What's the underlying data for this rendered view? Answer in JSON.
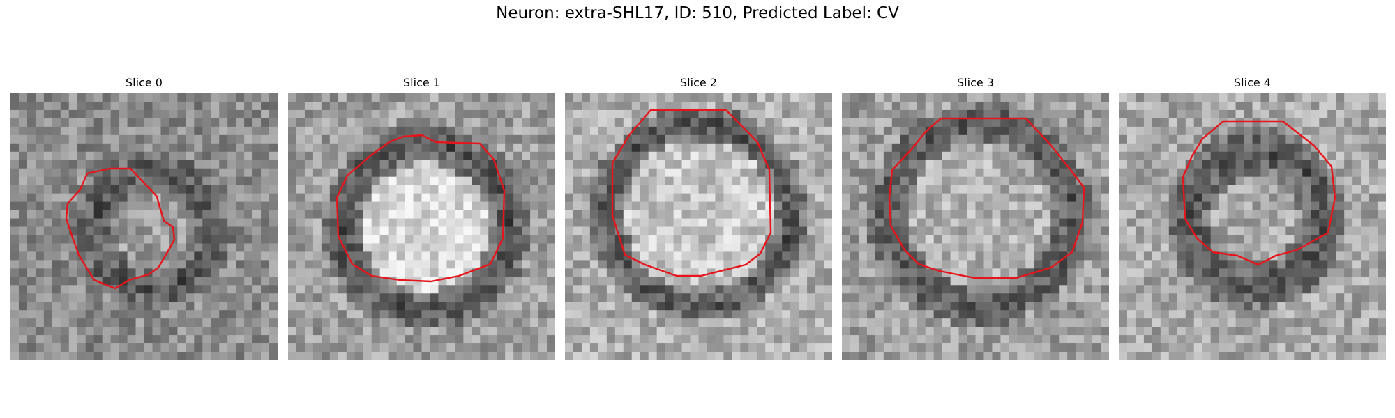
{
  "figure": {
    "title": "Neuron: extra-SHL17, ID: 510, Predicted Label: CV"
  },
  "slices": [
    {
      "title": "Slice 0"
    },
    {
      "title": "Slice 1"
    },
    {
      "title": "Slice 2"
    },
    {
      "title": "Slice 3"
    },
    {
      "title": "Slice 4"
    }
  ],
  "colors": {
    "contour": "#e8141b",
    "background": "#ffffff"
  }
}
